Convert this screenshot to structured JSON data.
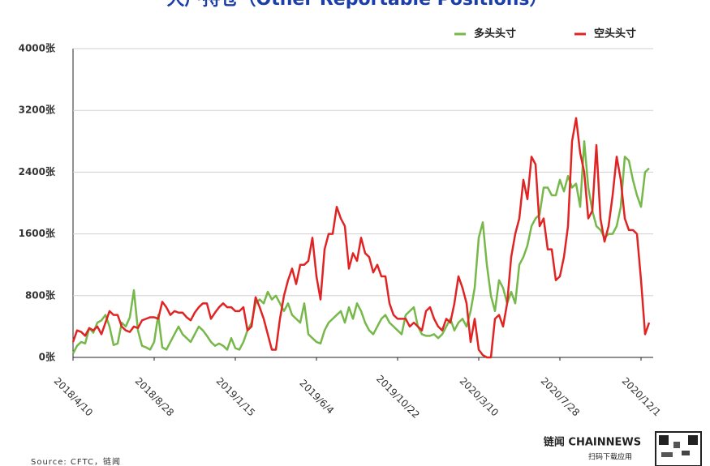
{
  "chart_data": {
    "type": "line",
    "title": "大户持仓（Other Reportable Positions）",
    "source": "Source: CFTC，链闻",
    "brand": "链闻 CHAINNEWS",
    "brand_tagline": "扫码下载应用",
    "categories": [
      "2018/4/10",
      null,
      null,
      null,
      null,
      null,
      null,
      null,
      null,
      null,
      null,
      null,
      null,
      null,
      null,
      null,
      null,
      null,
      null,
      null,
      "2018/8/28",
      null,
      null,
      null,
      null,
      null,
      null,
      null,
      null,
      null,
      null,
      null,
      null,
      null,
      null,
      null,
      null,
      null,
      null,
      null,
      "2019/1/15",
      null,
      null,
      null,
      null,
      null,
      null,
      null,
      null,
      null,
      null,
      null,
      null,
      null,
      null,
      null,
      null,
      null,
      null,
      null,
      "2019/6/4",
      null,
      null,
      null,
      null,
      null,
      null,
      null,
      null,
      null,
      null,
      null,
      null,
      null,
      null,
      null,
      null,
      null,
      null,
      null,
      "2019/10/22",
      null,
      null,
      null,
      null,
      null,
      null,
      null,
      null,
      null,
      null,
      null,
      null,
      null,
      null,
      null,
      null,
      null,
      null,
      null,
      "2020/3/10",
      null,
      null,
      null,
      null,
      null,
      null,
      null,
      null,
      null,
      null,
      null,
      null,
      null,
      null,
      null,
      null,
      null,
      null,
      null,
      "2020/7/28",
      null,
      null,
      null,
      null,
      null,
      null,
      null,
      null,
      null,
      null,
      null,
      null,
      null,
      null,
      null,
      null,
      null,
      null,
      null,
      "2020/12/1",
      null,
      null
    ],
    "series": [
      {
        "name": "多头头寸",
        "color": "#77b84a",
        "values": [
          50,
          150,
          200,
          180,
          380,
          320,
          450,
          480,
          550,
          400,
          160,
          180,
          450,
          400,
          520,
          870,
          350,
          150,
          130,
          100,
          200,
          550,
          130,
          100,
          200,
          300,
          400,
          300,
          250,
          200,
          300,
          400,
          350,
          280,
          200,
          150,
          180,
          150,
          100,
          250,
          120,
          100,
          200,
          350,
          450,
          700,
          750,
          700,
          850,
          750,
          800,
          700,
          600,
          700,
          550,
          500,
          450,
          700,
          300,
          250,
          200,
          180,
          350,
          450,
          500,
          550,
          600,
          450,
          650,
          500,
          700,
          600,
          450,
          350,
          300,
          400,
          500,
          550,
          450,
          400,
          350,
          300,
          550,
          600,
          650,
          400,
          300,
          280,
          280,
          300,
          250,
          300,
          400,
          500,
          350,
          450,
          500,
          400,
          600,
          900,
          1550,
          1750,
          1200,
          800,
          600,
          1000,
          900,
          700,
          850,
          700,
          1200,
          1300,
          1450,
          1700,
          1800,
          1850,
          2200,
          2200,
          2100,
          2100,
          2300,
          2150,
          2350,
          2200,
          2250,
          1950,
          2800,
          2200,
          1900,
          1700,
          1650,
          1550,
          1600,
          1600,
          1700,
          1950,
          2600,
          2550,
          2300,
          2100,
          1950,
          2400,
          2450
        ]
      },
      {
        "name": "空头头寸",
        "color": "#e02424",
        "values": [
          200,
          350,
          330,
          280,
          380,
          350,
          400,
          300,
          450,
          600,
          550,
          550,
          400,
          350,
          330,
          400,
          380,
          480,
          500,
          520,
          520,
          500,
          720,
          650,
          550,
          600,
          580,
          580,
          520,
          480,
          580,
          650,
          700,
          700,
          500,
          580,
          650,
          700,
          650,
          650,
          600,
          600,
          650,
          350,
          400,
          780,
          650,
          500,
          300,
          100,
          100,
          500,
          800,
          1000,
          1150,
          950,
          1200,
          1200,
          1250,
          1550,
          1050,
          750,
          1400,
          1600,
          1600,
          1950,
          1800,
          1700,
          1150,
          1350,
          1250,
          1550,
          1350,
          1300,
          1100,
          1200,
          1050,
          1050,
          700,
          550,
          500,
          500,
          500,
          400,
          450,
          400,
          350,
          600,
          650,
          500,
          400,
          350,
          500,
          450,
          700,
          1050,
          900,
          700,
          200,
          500,
          100,
          30,
          0,
          0,
          500,
          550,
          400,
          700,
          1300,
          1600,
          1800,
          2300,
          2050,
          2600,
          2500,
          1700,
          1800,
          1400,
          1400,
          1000,
          1050,
          1300,
          1700,
          2800,
          3100,
          2650,
          2400,
          1800,
          1900,
          2750,
          1800,
          1500,
          1700,
          2100,
          2600,
          2300,
          1800,
          1650,
          1650,
          1600,
          1000,
          300,
          450
        ]
      }
    ],
    "ylim": [
      0,
      4000
    ],
    "yticks": [
      {
        "value": 0,
        "label": "0张"
      },
      {
        "value": 800,
        "label": "800张"
      },
      {
        "value": 1600,
        "label": "1600张"
      },
      {
        "value": 2400,
        "label": "2400张"
      },
      {
        "value": 3200,
        "label": "3200张"
      },
      {
        "value": 4000,
        "label": "4000张"
      }
    ],
    "grid": true,
    "legend": "top-right"
  }
}
